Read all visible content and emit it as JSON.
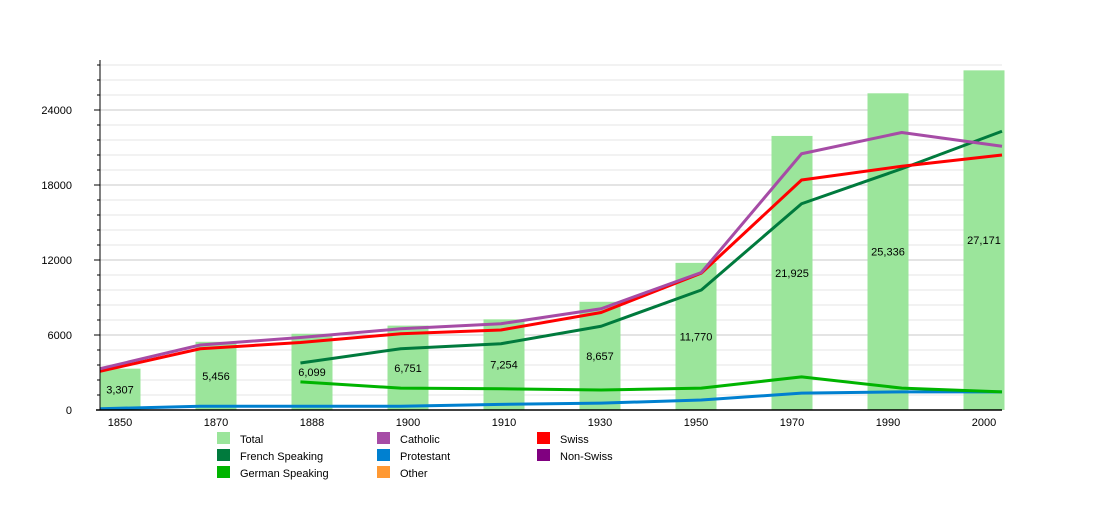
{
  "chart_data": {
    "type": "bar+line",
    "title": "",
    "xlabel": "",
    "ylabel": "",
    "categories": [
      "1850",
      "1870",
      "1888",
      "1900",
      "1910",
      "1930",
      "1950",
      "1970",
      "1990",
      "2000"
    ],
    "ylim": [
      0,
      28000
    ],
    "yticks": [
      0,
      6000,
      12000,
      18000,
      24000
    ],
    "grid": true,
    "legend_position": "bottom",
    "bars": {
      "name": "Total",
      "color": "#9be59b",
      "values": [
        3307,
        5456,
        6099,
        6751,
        7254,
        8657,
        11770,
        21925,
        25336,
        27171
      ],
      "labels": [
        "3,307",
        "5,456",
        "6,099",
        "6,751",
        "7,254",
        "8,657",
        "11,770",
        "21,925",
        "25,336",
        "27,171"
      ]
    },
    "series": [
      {
        "name": "Catholic",
        "color": "#a64ca6",
        "values": [
          3300,
          5200,
          5800,
          6500,
          6900,
          8100,
          11000,
          20500,
          22200,
          21100
        ]
      },
      {
        "name": "Swiss",
        "color": "#ff0000",
        "values": [
          3100,
          4900,
          5400,
          6100,
          6400,
          7800,
          10950,
          18400,
          19500,
          20400
        ]
      },
      {
        "name": "French Speaking",
        "color": "#007a3d",
        "values": [
          null,
          null,
          3760,
          4900,
          5300,
          6700,
          9600,
          16500,
          19300,
          22300
        ]
      },
      {
        "name": "German Speaking",
        "color": "#00b400",
        "values": [
          null,
          null,
          2250,
          1750,
          1700,
          1600,
          1750,
          2650,
          1750,
          1450
        ]
      },
      {
        "name": "Protestant",
        "color": "#0080d0",
        "values": [
          100,
          300,
          300,
          300,
          450,
          550,
          800,
          1350,
          1450,
          1450
        ]
      }
    ],
    "legend": [
      {
        "name": "Total",
        "color": "#9be59b"
      },
      {
        "name": "French Speaking",
        "color": "#007a3d"
      },
      {
        "name": "German Speaking",
        "color": "#00b400"
      },
      {
        "name": "Catholic",
        "color": "#a64ca6"
      },
      {
        "name": "Protestant",
        "color": "#0080d0"
      },
      {
        "name": "Other",
        "color": "#ff9933"
      },
      {
        "name": "Swiss",
        "color": "#ff0000"
      },
      {
        "name": "Non-Swiss",
        "color": "#800080"
      }
    ]
  }
}
